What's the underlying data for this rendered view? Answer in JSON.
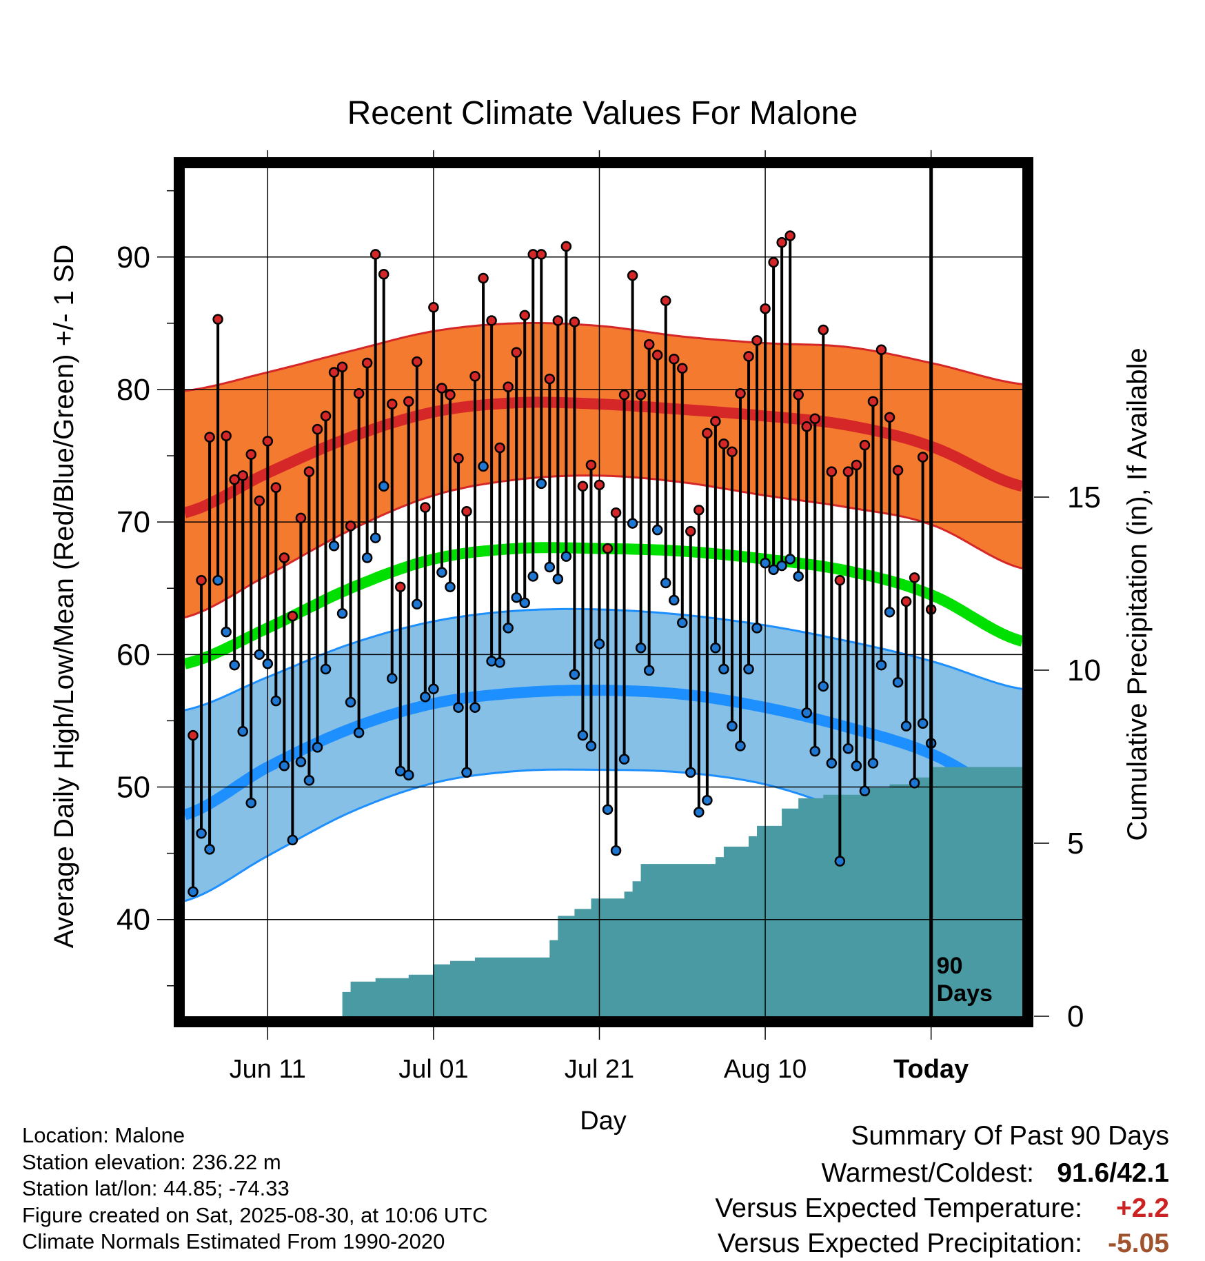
{
  "chart_data": {
    "type": "line",
    "title": "Recent Climate Values For Malone",
    "xlabel": "Day",
    "ylabel": "Average Daily High/Low/Mean (Red/Blue/Green) +/- 1 SD",
    "y2label": "Cumulative Precipitation (in), If Available",
    "xtick_labels": [
      "Jun 11",
      "Jul 01",
      "Jul 21",
      "Aug 10",
      "Today"
    ],
    "ytick_labels": [
      "40",
      "50",
      "60",
      "70",
      "80",
      "90"
    ],
    "y2tick_labels": [
      "0",
      "5",
      "10",
      "15"
    ],
    "ylim": [
      32.7,
      96.7
    ],
    "y2lim": [
      0,
      24.5
    ],
    "x_start": "2025-06-01",
    "x_end": "2025-09-10",
    "today": "2025-08-30",
    "window_label": [
      "90",
      "Days"
    ],
    "grid": true,
    "normals": {
      "dates": [
        "2025-06-01",
        "2025-06-11",
        "2025-06-21",
        "2025-07-01",
        "2025-07-11",
        "2025-07-21",
        "2025-07-31",
        "2025-08-10",
        "2025-08-20",
        "2025-08-30",
        "2025-09-10"
      ],
      "high_upper": [
        79.9,
        81.3,
        82.9,
        84.4,
        85.0,
        84.8,
        84.0,
        83.5,
        83.2,
        82.0,
        80.4
      ],
      "high_mean": [
        70.7,
        73.7,
        76.4,
        78.3,
        79.0,
        78.9,
        78.5,
        78.0,
        77.3,
        75.7,
        72.7
      ],
      "high_lower": [
        62.8,
        66.0,
        69.4,
        72.0,
        73.2,
        73.5,
        73.0,
        72.0,
        71.1,
        69.8,
        66.5
      ],
      "mean": [
        59.3,
        62.0,
        65.0,
        67.2,
        68.0,
        68.0,
        67.8,
        67.2,
        66.3,
        64.5,
        61.0
      ],
      "low_upper": [
        55.8,
        58.3,
        60.8,
        62.5,
        63.3,
        63.4,
        63.0,
        62.2,
        61.0,
        59.5,
        57.4
      ],
      "low_mean": [
        47.9,
        51.5,
        54.4,
        56.3,
        57.1,
        57.3,
        57.0,
        56.0,
        54.5,
        52.5,
        49.0
      ],
      "low_lower": [
        41.4,
        44.8,
        48.1,
        50.3,
        51.2,
        51.3,
        51.1,
        50.2,
        48.2,
        45.9,
        42.3
      ]
    },
    "series": [
      {
        "name": "High",
        "color": "#d62728",
        "values": [
          53.9,
          65.6,
          76.4,
          85.3,
          76.5,
          73.2,
          73.5,
          75.1,
          71.6,
          76.1,
          72.6,
          67.3,
          62.9,
          70.3,
          73.8,
          77.0,
          78.0,
          81.3,
          81.7,
          69.7,
          79.7,
          82.0,
          90.2,
          88.7,
          78.9,
          65.1,
          79.1,
          82.1,
          71.1,
          86.2,
          80.1,
          79.6,
          74.8,
          70.8,
          81.0,
          88.4,
          85.2,
          75.6,
          80.2,
          82.8,
          85.6,
          90.2,
          90.2,
          80.8,
          85.2,
          90.8,
          85.1,
          72.7,
          74.3,
          72.8,
          68.0,
          70.7,
          79.6,
          88.6,
          79.6,
          83.4,
          82.6,
          86.7,
          82.3,
          81.6,
          69.3,
          70.9,
          76.7,
          77.6,
          75.9,
          75.3,
          79.7,
          82.5,
          83.7,
          86.1,
          89.6,
          91.1,
          91.6,
          79.6,
          77.2,
          77.8,
          84.5,
          73.8,
          65.6,
          73.8,
          74.3,
          75.8,
          79.1,
          83.0,
          77.9,
          73.9,
          64.0,
          65.8,
          74.9,
          63.4
        ]
      },
      {
        "name": "Low",
        "color": "#1f77d4",
        "values": [
          42.1,
          46.5,
          45.3,
          65.6,
          61.7,
          59.2,
          54.2,
          48.8,
          60.0,
          59.3,
          56.5,
          51.6,
          46.0,
          51.9,
          50.5,
          53.0,
          58.9,
          68.2,
          63.1,
          56.4,
          54.1,
          67.3,
          68.8,
          72.7,
          58.2,
          51.2,
          50.9,
          63.8,
          56.8,
          57.4,
          66.2,
          65.1,
          56.0,
          51.1,
          56.0,
          74.2,
          59.5,
          59.4,
          62.0,
          64.3,
          63.9,
          65.9,
          72.9,
          66.6,
          65.7,
          67.4,
          58.5,
          53.9,
          53.1,
          60.8,
          48.3,
          45.2,
          52.1,
          69.9,
          60.5,
          58.8,
          69.4,
          65.4,
          64.1,
          62.4,
          51.1,
          48.1,
          49.0,
          60.5,
          58.9,
          54.6,
          53.1,
          58.9,
          62.0,
          66.9,
          66.4,
          66.7,
          67.2,
          65.9,
          55.6,
          52.7,
          57.6,
          51.8,
          44.4,
          52.9,
          51.6,
          49.7,
          51.8,
          59.2,
          63.2,
          57.9,
          54.6,
          50.3,
          54.8,
          53.3
        ]
      },
      {
        "name": "Precipitation",
        "color": "#4a9aa3",
        "dates": [
          "2025-06-19",
          "2025-06-20",
          "2025-06-21",
          "2025-06-24",
          "2025-06-28",
          "2025-07-01",
          "2025-07-03",
          "2025-07-06",
          "2025-07-15",
          "2025-07-16",
          "2025-07-18",
          "2025-07-20",
          "2025-07-24",
          "2025-07-25",
          "2025-07-26",
          "2025-08-04",
          "2025-08-05",
          "2025-08-08",
          "2025-08-09",
          "2025-08-12",
          "2025-08-14",
          "2025-08-17",
          "2025-08-22",
          "2025-08-25",
          "2025-08-28",
          "2025-08-30"
        ],
        "values": [
          0,
          0.7,
          1.0,
          1.1,
          1.2,
          1.5,
          1.6,
          1.7,
          2.2,
          2.9,
          3.1,
          3.4,
          3.6,
          3.9,
          4.4,
          4.6,
          4.9,
          5.2,
          5.5,
          6.0,
          6.3,
          6.4,
          6.6,
          6.7,
          6.9,
          7.2
        ]
      }
    ]
  },
  "footer": {
    "location": "Location: Malone",
    "elevation": "Station elevation: 236.22 m",
    "latlon": "Station lat/lon: 44.85; -74.33",
    "created": "Figure created on Sat, 2025-08-30, at 10:06 UTC",
    "normals": "Climate Normals Estimated From 1990-2020"
  },
  "summary": {
    "title": "Summary Of Past 90 Days",
    "warmest_label": "Warmest/Coldest:",
    "warmest_value": "91.6/42.1",
    "temp_label": "Versus Expected Temperature:",
    "temp_value": "+2.2",
    "precip_label": "Versus Expected Precipitation:",
    "precip_value": "-5.05"
  }
}
